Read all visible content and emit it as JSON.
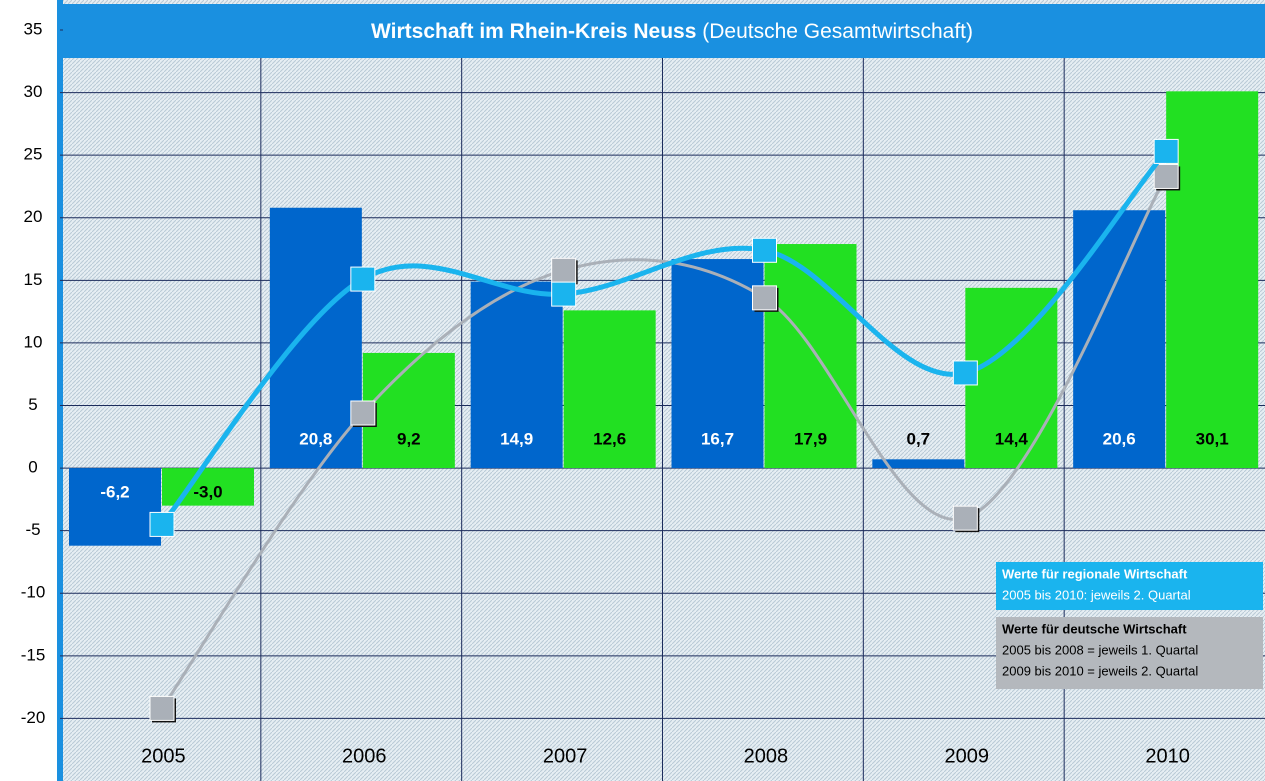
{
  "chart_data": {
    "type": "combo",
    "title": "Wirtschaft im Rhein-Kreis Neuss",
    "subtitle": "(Deutsche Gesamtwirtschaft)",
    "categories": [
      "2005",
      "2006",
      "2007",
      "2008",
      "2009",
      "2010"
    ],
    "bars": [
      {
        "color": "#0066cc",
        "values": [
          -6.2,
          20.8,
          14.9,
          16.7,
          0.7,
          20.6
        ],
        "value_labels": [
          "-6,2",
          "20,8",
          "14,9",
          "16,7",
          "0,7",
          "20,6"
        ]
      },
      {
        "color": "#22e022",
        "values": [
          -3.0,
          9.2,
          12.6,
          17.9,
          14.4,
          30.1
        ],
        "value_labels": [
          "-3,0",
          "9,2",
          "12,6",
          "17,9",
          "14,4",
          "30,1"
        ]
      }
    ],
    "series": [
      {
        "name": "Werte für regionale Wirtschaft",
        "notes": [
          "2005 bis 2010: jeweils 2. Quartal"
        ],
        "color": "#1ab4ee",
        "values": [
          -4.5,
          15.1,
          13.9,
          17.4,
          7.6,
          25.3
        ]
      },
      {
        "name": "Werte für deutsche Wirtschaft",
        "notes": [
          "2005 bis 2008 = jeweils 1. Quartal",
          "2009 bis 2010 = jeweils 2. Quartal"
        ],
        "color": "#aab0b8",
        "values": [
          -19.2,
          4.4,
          15.8,
          13.6,
          -4.0,
          23.3
        ]
      }
    ],
    "ylim": [
      -25,
      35
    ],
    "yticks": [
      -20,
      -15,
      -10,
      -5,
      0,
      5,
      10,
      15,
      20,
      25,
      30,
      35
    ],
    "grid": true
  }
}
